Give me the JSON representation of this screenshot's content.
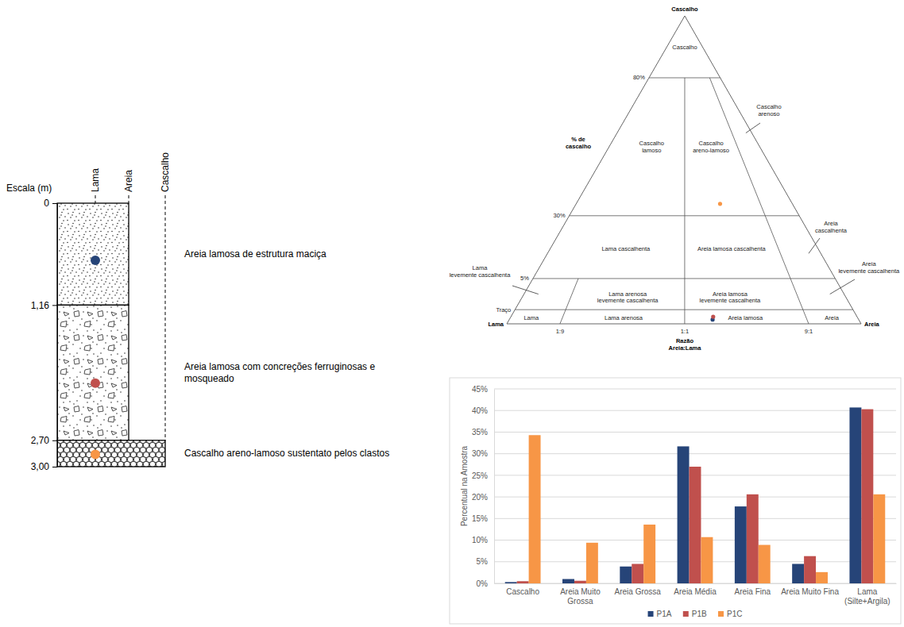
{
  "chart_data": {
    "type": "bar",
    "categories": [
      "Cascalho",
      "Areia Muito Grossa",
      "Areia Grossa",
      "Areia Média",
      "Areia Fina",
      "Areia Muito Fina",
      "Lama (Silte+Argila)"
    ],
    "series": [
      {
        "name": "P1A",
        "color": "#264478",
        "values": [
          0.3,
          1.0,
          3.9,
          31.7,
          17.8,
          4.5,
          40.7
        ]
      },
      {
        "name": "P1B",
        "color": "#c0504d",
        "values": [
          0.5,
          0.6,
          4.5,
          27.0,
          20.6,
          6.3,
          40.3
        ]
      },
      {
        "name": "P1C",
        "color": "#f79646",
        "values": [
          34.3,
          9.4,
          13.6,
          10.7,
          8.9,
          2.6,
          20.6
        ]
      }
    ],
    "ylabel": "Percentual na Amostra",
    "ylim": [
      0,
      45
    ],
    "yticks": [
      {
        "value": 0,
        "label": "0%"
      },
      {
        "value": 5,
        "label": "5%"
      },
      {
        "value": 10,
        "label": "10%"
      },
      {
        "value": 15,
        "label": "15%"
      },
      {
        "value": 20,
        "label": "20%"
      },
      {
        "value": 25,
        "label": "25%"
      },
      {
        "value": 30,
        "label": "30%"
      },
      {
        "value": 35,
        "label": "35%"
      },
      {
        "value": 40,
        "label": "40%"
      },
      {
        "value": 45,
        "label": "45%"
      }
    ],
    "grid": true,
    "legend": "bottom"
  },
  "stratigraphic_column": {
    "scale_title": "Escala (m)",
    "depth_lim": [
      0,
      3
    ],
    "depth_ticks": [
      0,
      {
        "value": 1.16,
        "label": "1,16"
      },
      {
        "value": 2.7,
        "label": "2,70"
      },
      {
        "value": 3,
        "label": "3,00"
      }
    ],
    "grain_classes": [
      "Lama",
      "Areia",
      "Cascalho"
    ],
    "layers": [
      {
        "top": 0,
        "bottom": 1.16,
        "grain": "Areia",
        "description": "Areia lamosa de estrutura maciça",
        "sample_depth": 0.65
      },
      {
        "top": 1.16,
        "bottom": 2.7,
        "grain": "Areia",
        "description": "Areia lamosa com concreções ferruginosas e mosqueado",
        "sample_depth": 2.05
      },
      {
        "top": 2.7,
        "bottom": 3,
        "grain": "Cascalho",
        "description": "Cascalho areno-lamoso sustentato pelos clastos",
        "sample_depth": 2.86
      }
    ]
  },
  "ternary_diagram": {
    "apex_label": "Cascalho",
    "left_label": "Lama",
    "right_label": "Areia",
    "gravel_title": "% de cascalho",
    "gravel_lim": [
      0,
      100
    ],
    "gravel_levels": [
      {
        "value": 1,
        "label": "Traço"
      },
      {
        "value": 5,
        "label": "5%"
      },
      {
        "value": 30,
        "label": "30%"
      },
      {
        "value": 80,
        "label": "80%"
      }
    ],
    "ratio_title": "Razão Areia:Lama",
    "ratio_lim": [
      0,
      1
    ],
    "ratios": [
      {
        "value": 0.1,
        "label": "1:9",
        "to_gravel": 5
      },
      {
        "value": 0.5,
        "label": "1:1",
        "to_gravel": 80
      },
      {
        "value": 0.9,
        "label": "9:1",
        "to_gravel": 80
      }
    ],
    "regions": [
      "Cascalho",
      "Cascalho lamoso",
      "Cascalho areno-lamoso",
      "Cascalho arenoso",
      "Lama cascalhenta",
      "Areia lamosa cascalhenta",
      "Areia cascalhenta",
      "Lama levemente cascalhenta",
      "Lama arenosa levemente cascalhenta",
      "Areia lamosa levemente cascalhenta",
      "Areia levemente cascalhenta",
      "Lama",
      "Lama arenosa",
      "Areia lamosa",
      "Areia"
    ]
  }
}
